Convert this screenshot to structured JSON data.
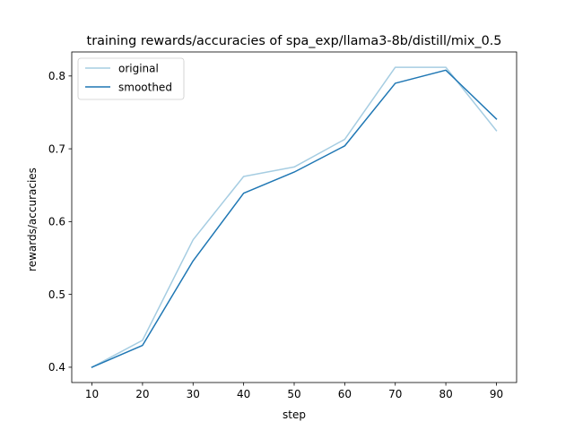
{
  "chart_data": {
    "type": "line",
    "title": "training rewards/accuracies of spa_exp/llama3-8b/distill/mix_0.5",
    "xlabel": "step",
    "ylabel": "rewards/accuracies",
    "xlim": [
      6,
      94
    ],
    "ylim": [
      0.379,
      0.833
    ],
    "xticks": [
      10,
      20,
      30,
      40,
      50,
      60,
      70,
      80,
      90
    ],
    "yticks": [
      0.4,
      0.5,
      0.6,
      0.7,
      0.8
    ],
    "x": [
      10,
      20,
      30,
      40,
      50,
      60,
      70,
      80,
      90
    ],
    "series": [
      {
        "name": "original",
        "color": "#a6cde2",
        "values": [
          0.4,
          0.437,
          0.575,
          0.662,
          0.675,
          0.713,
          0.812,
          0.812,
          0.725
        ]
      },
      {
        "name": "smoothed",
        "color": "#1f77b4",
        "values": [
          0.4,
          0.43,
          0.546,
          0.639,
          0.668,
          0.704,
          0.79,
          0.808,
          0.741
        ]
      }
    ],
    "legend": "top-left",
    "grid": false
  }
}
